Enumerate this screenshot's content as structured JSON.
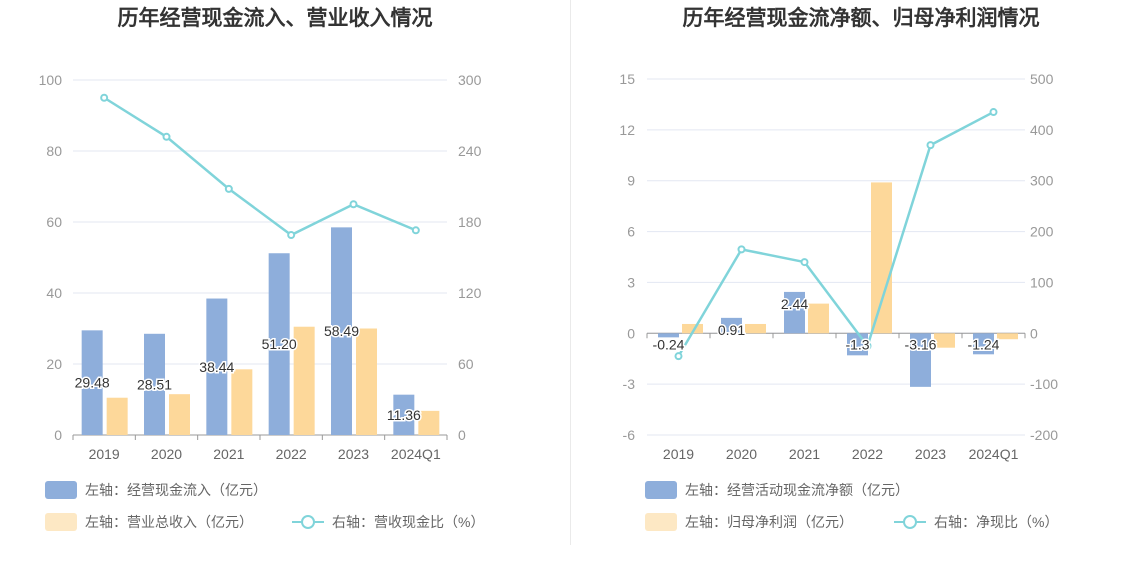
{
  "colors": {
    "bar_primary": "#8eaedb",
    "bar_secondary": "#fdd89a",
    "legend_secondary": "#fde8c4",
    "line": "#80d4da",
    "grid": "#e3e7f2",
    "axis": "#999999"
  },
  "chart_data": [
    {
      "type": "bar",
      "title": "历年经营现金流入、营业收入情况",
      "categories": [
        "2019",
        "2020",
        "2021",
        "2022",
        "2023",
        "2024Q1"
      ],
      "left_axis": {
        "ticks": [
          "100",
          "80",
          "60",
          "40",
          "20",
          "0"
        ],
        "range": [
          0,
          100
        ]
      },
      "right_axis": {
        "ticks": [
          "300",
          "240",
          "180",
          "120",
          "60",
          "0"
        ],
        "range": [
          0,
          300
        ]
      },
      "series": [
        {
          "name": "左轴：经营现金流入（亿元）",
          "type": "bar",
          "axis": "left",
          "values": [
            29.48,
            28.51,
            38.44,
            51.2,
            58.49,
            11.36
          ],
          "labels": [
            "29.48",
            "28.51",
            "38.44",
            "51.20",
            "58.49",
            "11.36"
          ]
        },
        {
          "name": "左轴：营业总收入（亿元）",
          "type": "bar",
          "axis": "left",
          "values": [
            10.5,
            11.5,
            18.5,
            30.5,
            30.0,
            6.8
          ]
        },
        {
          "name": "右轴：营收现金比（%）",
          "type": "line",
          "axis": "right",
          "values": [
            285,
            252,
            208,
            169,
            195,
            173
          ]
        }
      ],
      "legend_placement": "bottom-left",
      "grid": true
    },
    {
      "type": "bar",
      "title": "历年经营现金流净额、归母净利润情况",
      "categories": [
        "2019",
        "2020",
        "2021",
        "2022",
        "2023",
        "2024Q1"
      ],
      "left_axis": {
        "ticks": [
          "15",
          "12",
          "9",
          "6",
          "3",
          "0",
          "-3",
          "-6"
        ],
        "range": [
          -6,
          15
        ]
      },
      "right_axis": {
        "ticks": [
          "500",
          "400",
          "300",
          "200",
          "100",
          "0",
          "-100",
          "-200"
        ],
        "range": [
          -200,
          500
        ]
      },
      "series": [
        {
          "name": "左轴：经营活动现金流净额（亿元）",
          "type": "bar",
          "axis": "left",
          "values": [
            -0.24,
            0.91,
            2.44,
            -1.3,
            -3.16,
            -1.24
          ],
          "labels": [
            "-0.24",
            "0.91",
            "2.44",
            "-1.3",
            "-3.16",
            "-1.24"
          ]
        },
        {
          "name": "左轴：归母净利润（亿元）",
          "type": "bar",
          "axis": "left",
          "values": [
            0.55,
            0.55,
            1.75,
            8.9,
            -0.85,
            -0.35
          ]
        },
        {
          "name": "右轴：净现比（%）",
          "type": "line",
          "axis": "right",
          "values": [
            -45,
            165,
            140,
            -25,
            370,
            435
          ]
        }
      ],
      "legend_placement": "bottom-left",
      "grid": true
    }
  ]
}
